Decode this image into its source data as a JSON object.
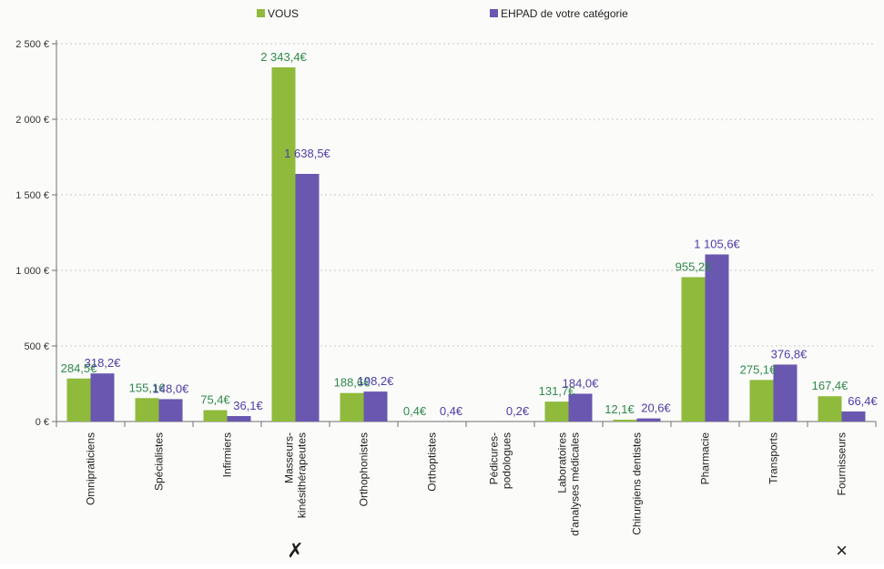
{
  "chart_data": {
    "type": "bar",
    "categories": [
      [
        "Omnipraticiens"
      ],
      [
        "Spécialistes"
      ],
      [
        "Infirmiers"
      ],
      [
        "Masseurs-",
        "kinésithérapeutes"
      ],
      [
        "Orthophonistes"
      ],
      [
        "Orthoptistes"
      ],
      [
        "Pédicures-",
        "podologues"
      ],
      [
        "Laboratoires",
        "d'analyses médicales"
      ],
      [
        "Chirurgiens dentistes"
      ],
      [
        "Pharmacie"
      ],
      [
        "Transports"
      ],
      [
        "Fournisseurs"
      ]
    ],
    "series": [
      {
        "name": "VOUS",
        "color": "#8fba3c",
        "label_color": "#2f8a4a",
        "values": [
          284.5,
          155.1,
          75.4,
          2343.4,
          188.6,
          0.4,
          0.0,
          131.7,
          12.1,
          955.2,
          275.1,
          167.4
        ],
        "labels": [
          "284,5€",
          "155,1€",
          "75,4€",
          "2 343,4€",
          "188,6€",
          "0,4€",
          "",
          "131,7€",
          "12,1€",
          "955,2€",
          "275,1€",
          "167,4€"
        ]
      },
      {
        "name": "EHPAD de votre catégorie",
        "color": "#6a57b0",
        "label_color": "#4c3fa5",
        "values": [
          318.2,
          148.0,
          36.1,
          1638.5,
          198.2,
          0.4,
          0.2,
          184.0,
          20.6,
          1105.6,
          376.8,
          66.4
        ],
        "labels": [
          "318,2€",
          "148,0€",
          "36,1€",
          "1 638,5€",
          "198,2€",
          "0,4€",
          "0,2€",
          "184,0€",
          "20,6€",
          "1 105,6€",
          "376,8€",
          "66,4€"
        ]
      }
    ],
    "yticks": [
      {
        "value": 0,
        "label": "0 €"
      },
      {
        "value": 500,
        "label": "500 €"
      },
      {
        "value": 1000,
        "label": "1 000 €"
      },
      {
        "value": 1500,
        "label": "1 500 €"
      },
      {
        "value": 2000,
        "label": "2 000 €"
      },
      {
        "value": 2500,
        "label": "2 500 €"
      }
    ],
    "ylim": [
      0,
      2500
    ],
    "grid": true,
    "legend_position": "top",
    "handwritten_marks": [
      {
        "category_index": 3,
        "symbol": "✗"
      },
      {
        "category_index": 11,
        "symbol": "×"
      }
    ]
  }
}
